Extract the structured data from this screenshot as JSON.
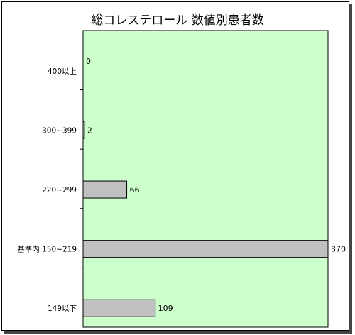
{
  "chart_data": {
    "type": "bar",
    "orientation": "horizontal",
    "title": "総コレステロール 数値別患者数",
    "categories": [
      "400以上",
      "300~399",
      "220~299",
      "基準内 150~219",
      "149以下"
    ],
    "values": [
      0,
      2,
      66,
      370,
      109
    ],
    "xlim": [
      0,
      370
    ],
    "grid": false,
    "legend": "none",
    "colors": {
      "plot_background": "#ccffcc",
      "bar_fill": "#c0c0c0",
      "bar_stroke": "#000000"
    }
  }
}
